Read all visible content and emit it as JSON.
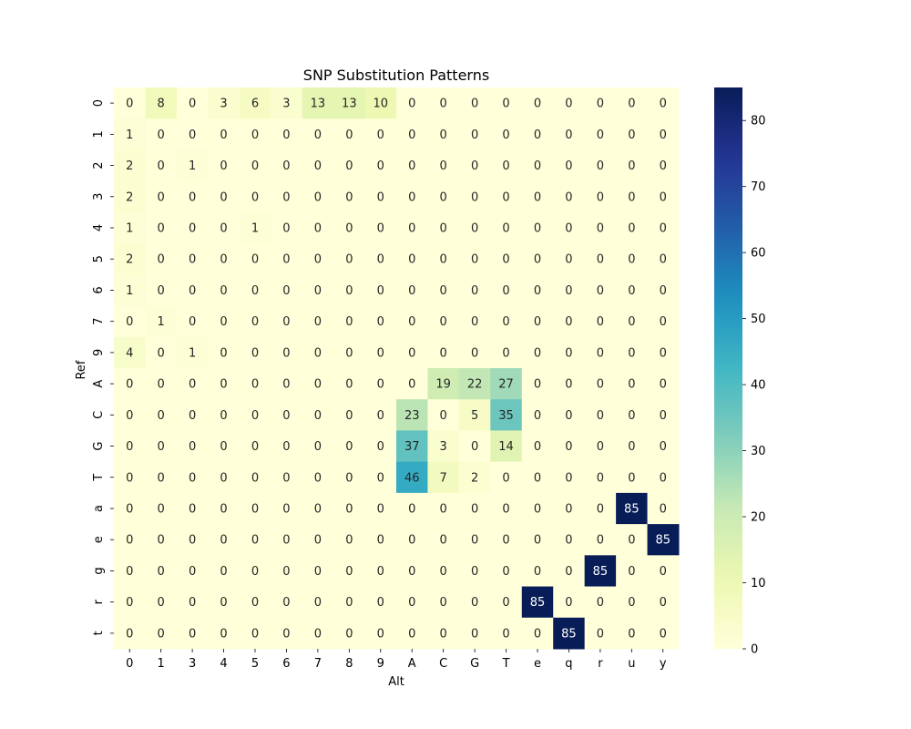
{
  "chart_data": {
    "type": "heatmap",
    "title": "SNP Substitution Patterns",
    "xlabel": "Alt",
    "ylabel": "Ref",
    "x_categories": [
      "0",
      "1",
      "3",
      "4",
      "5",
      "6",
      "7",
      "8",
      "9",
      "A",
      "C",
      "G",
      "T",
      "e",
      "q",
      "r",
      "u",
      "y"
    ],
    "y_categories": [
      "0",
      "1",
      "2",
      "3",
      "4",
      "5",
      "6",
      "7",
      "9",
      "A",
      "C",
      "G",
      "T",
      "a",
      "e",
      "g",
      "r",
      "t"
    ],
    "values": [
      [
        0,
        8,
        0,
        3,
        6,
        3,
        13,
        13,
        10,
        0,
        0,
        0,
        0,
        0,
        0,
        0,
        0,
        0
      ],
      [
        1,
        0,
        0,
        0,
        0,
        0,
        0,
        0,
        0,
        0,
        0,
        0,
        0,
        0,
        0,
        0,
        0,
        0
      ],
      [
        2,
        0,
        1,
        0,
        0,
        0,
        0,
        0,
        0,
        0,
        0,
        0,
        0,
        0,
        0,
        0,
        0,
        0
      ],
      [
        2,
        0,
        0,
        0,
        0,
        0,
        0,
        0,
        0,
        0,
        0,
        0,
        0,
        0,
        0,
        0,
        0,
        0
      ],
      [
        1,
        0,
        0,
        0,
        1,
        0,
        0,
        0,
        0,
        0,
        0,
        0,
        0,
        0,
        0,
        0,
        0,
        0
      ],
      [
        2,
        0,
        0,
        0,
        0,
        0,
        0,
        0,
        0,
        0,
        0,
        0,
        0,
        0,
        0,
        0,
        0,
        0
      ],
      [
        1,
        0,
        0,
        0,
        0,
        0,
        0,
        0,
        0,
        0,
        0,
        0,
        0,
        0,
        0,
        0,
        0,
        0
      ],
      [
        0,
        1,
        0,
        0,
        0,
        0,
        0,
        0,
        0,
        0,
        0,
        0,
        0,
        0,
        0,
        0,
        0,
        0
      ],
      [
        4,
        0,
        1,
        0,
        0,
        0,
        0,
        0,
        0,
        0,
        0,
        0,
        0,
        0,
        0,
        0,
        0,
        0
      ],
      [
        0,
        0,
        0,
        0,
        0,
        0,
        0,
        0,
        0,
        0,
        19,
        22,
        27,
        0,
        0,
        0,
        0,
        0
      ],
      [
        0,
        0,
        0,
        0,
        0,
        0,
        0,
        0,
        0,
        23,
        0,
        5,
        35,
        0,
        0,
        0,
        0,
        0
      ],
      [
        0,
        0,
        0,
        0,
        0,
        0,
        0,
        0,
        0,
        37,
        3,
        0,
        14,
        0,
        0,
        0,
        0,
        0
      ],
      [
        0,
        0,
        0,
        0,
        0,
        0,
        0,
        0,
        0,
        46,
        7,
        2,
        0,
        0,
        0,
        0,
        0,
        0
      ],
      [
        0,
        0,
        0,
        0,
        0,
        0,
        0,
        0,
        0,
        0,
        0,
        0,
        0,
        0,
        0,
        0,
        85,
        0
      ],
      [
        0,
        0,
        0,
        0,
        0,
        0,
        0,
        0,
        0,
        0,
        0,
        0,
        0,
        0,
        0,
        0,
        0,
        85
      ],
      [
        0,
        0,
        0,
        0,
        0,
        0,
        0,
        0,
        0,
        0,
        0,
        0,
        0,
        0,
        0,
        85,
        0,
        0
      ],
      [
        0,
        0,
        0,
        0,
        0,
        0,
        0,
        0,
        0,
        0,
        0,
        0,
        0,
        85,
        0,
        0,
        0,
        0
      ],
      [
        0,
        0,
        0,
        0,
        0,
        0,
        0,
        0,
        0,
        0,
        0,
        0,
        0,
        0,
        85,
        0,
        0,
        0
      ]
    ],
    "colormap": "YlGnBu",
    "colorbar_range": [
      0,
      85
    ],
    "colorbar_ticks": [
      0,
      10,
      20,
      30,
      40,
      50,
      60,
      70,
      80
    ],
    "annotations": true
  }
}
